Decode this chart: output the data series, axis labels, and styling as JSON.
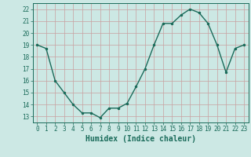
{
  "x": [
    0,
    1,
    2,
    3,
    4,
    5,
    6,
    7,
    8,
    9,
    10,
    11,
    12,
    13,
    14,
    15,
    16,
    17,
    18,
    19,
    20,
    21,
    22,
    23
  ],
  "y": [
    19.0,
    18.7,
    16.0,
    15.0,
    14.0,
    13.3,
    13.3,
    12.9,
    13.7,
    13.7,
    14.1,
    15.5,
    17.0,
    19.0,
    20.8,
    20.8,
    21.5,
    22.0,
    21.7,
    20.8,
    19.0,
    16.7,
    18.7,
    19.0
  ],
  "xlabel": "Humidex (Indice chaleur)",
  "line_color": "#1a6b5a",
  "marker_color": "#1a6b5a",
  "bg_color": "#cce8e4",
  "grid_color": "#c8a0a0",
  "axis_color": "#1a6b5a",
  "text_color": "#1a6b5a",
  "xlim": [
    -0.5,
    23.5
  ],
  "ylim": [
    12.5,
    22.5
  ],
  "yticks": [
    13,
    14,
    15,
    16,
    17,
    18,
    19,
    20,
    21,
    22
  ],
  "xticks": [
    0,
    1,
    2,
    3,
    4,
    5,
    6,
    7,
    8,
    9,
    10,
    11,
    12,
    13,
    14,
    15,
    16,
    17,
    18,
    19,
    20,
    21,
    22,
    23
  ],
  "tick_fontsize": 5.5,
  "xlabel_fontsize": 7.0
}
